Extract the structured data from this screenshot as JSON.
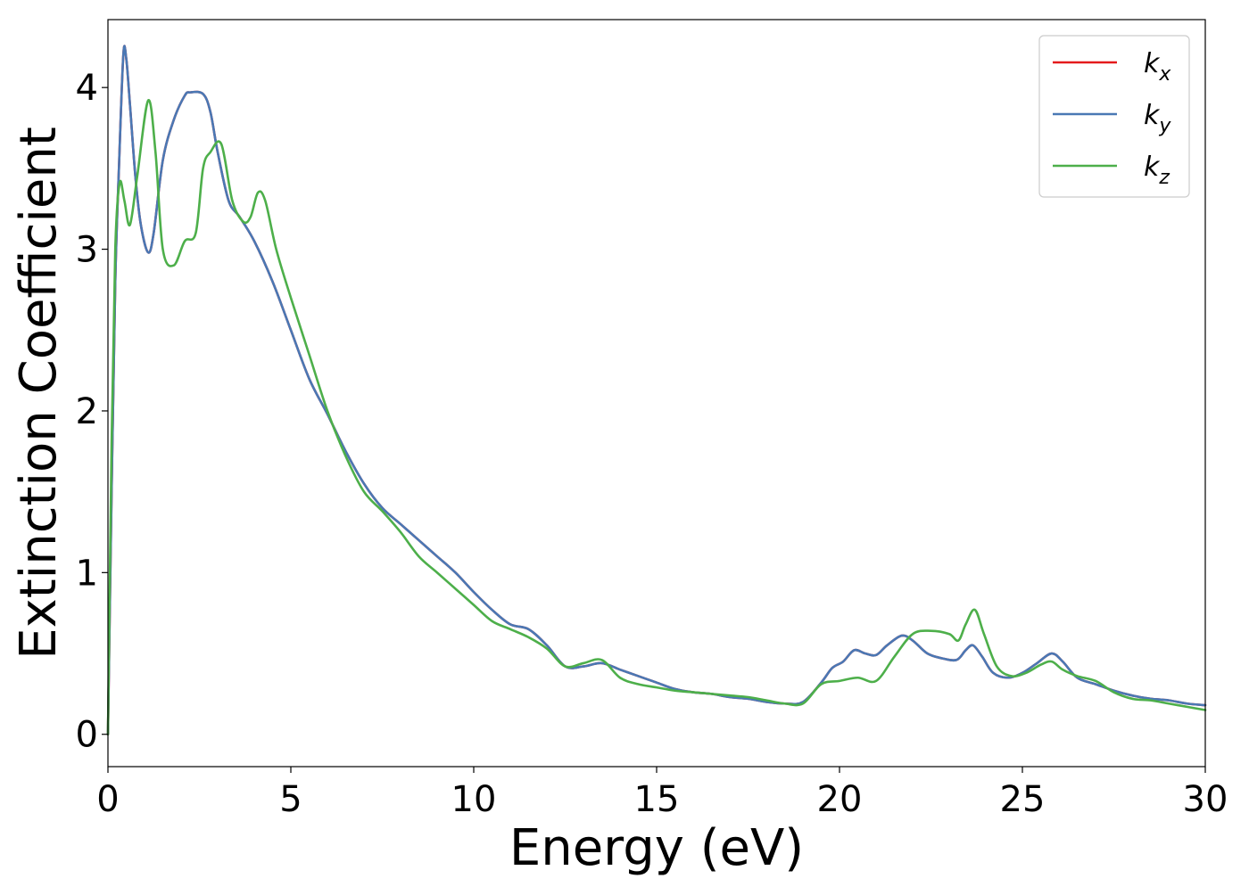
{
  "chart_data": {
    "type": "line",
    "title": "",
    "xlabel": "Energy (eV)",
    "ylabel": "Extinction Coefficient",
    "xlim": [
      0,
      30
    ],
    "ylim": [
      -0.2,
      4.42
    ],
    "xticks": [
      0,
      5,
      10,
      15,
      20,
      25,
      30
    ],
    "yticks": [
      0,
      1,
      2,
      3,
      4
    ],
    "grid": false,
    "legend_position": "top-right",
    "series": [
      {
        "name": "k_x",
        "label_base": "k",
        "label_sub": "x",
        "color": "#e41a1c",
        "x": [
          0.0,
          0.1,
          0.2,
          0.3,
          0.42,
          0.5,
          0.6,
          0.75,
          0.9,
          1.1,
          1.25,
          1.5,
          1.8,
          2.1,
          2.25,
          2.6,
          2.8,
          3.0,
          3.3,
          3.6,
          4.0,
          4.5,
          5.0,
          5.5,
          6.0,
          6.5,
          7.0,
          7.5,
          8.0,
          8.5,
          9.0,
          9.5,
          10.0,
          10.5,
          11.0,
          11.5,
          12.0,
          12.5,
          13.0,
          13.5,
          14.0,
          14.5,
          15.0,
          15.5,
          16.0,
          16.5,
          17.0,
          17.5,
          18.0,
          18.5,
          19.0,
          19.5,
          19.8,
          20.1,
          20.4,
          20.7,
          21.0,
          21.3,
          21.7,
          22.0,
          22.4,
          22.8,
          23.2,
          23.45,
          23.65,
          23.9,
          24.2,
          24.6,
          25.0,
          25.4,
          25.8,
          26.1,
          26.5,
          27.0,
          27.5,
          28.0,
          28.5,
          29.0,
          29.5,
          30.0
        ],
        "y": [
          0.0,
          1.5,
          2.8,
          3.5,
          4.2,
          4.18,
          3.9,
          3.45,
          3.15,
          2.98,
          3.1,
          3.55,
          3.8,
          3.95,
          3.97,
          3.96,
          3.85,
          3.6,
          3.3,
          3.2,
          3.05,
          2.8,
          2.5,
          2.2,
          1.98,
          1.75,
          1.55,
          1.4,
          1.3,
          1.2,
          1.1,
          1.0,
          0.88,
          0.77,
          0.68,
          0.65,
          0.55,
          0.42,
          0.42,
          0.44,
          0.4,
          0.36,
          0.32,
          0.28,
          0.26,
          0.25,
          0.23,
          0.22,
          0.2,
          0.19,
          0.2,
          0.32,
          0.41,
          0.45,
          0.52,
          0.5,
          0.49,
          0.55,
          0.61,
          0.58,
          0.5,
          0.47,
          0.46,
          0.52,
          0.55,
          0.48,
          0.38,
          0.35,
          0.38,
          0.44,
          0.5,
          0.45,
          0.35,
          0.31,
          0.27,
          0.24,
          0.22,
          0.21,
          0.19,
          0.18
        ]
      },
      {
        "name": "k_y",
        "label_base": "k",
        "label_sub": "y",
        "color": "#4a78b4",
        "x": [
          0.0,
          0.1,
          0.2,
          0.3,
          0.42,
          0.5,
          0.6,
          0.75,
          0.9,
          1.1,
          1.25,
          1.5,
          1.8,
          2.1,
          2.25,
          2.6,
          2.8,
          3.0,
          3.3,
          3.6,
          4.0,
          4.5,
          5.0,
          5.5,
          6.0,
          6.5,
          7.0,
          7.5,
          8.0,
          8.5,
          9.0,
          9.5,
          10.0,
          10.5,
          11.0,
          11.5,
          12.0,
          12.5,
          13.0,
          13.5,
          14.0,
          14.5,
          15.0,
          15.5,
          16.0,
          16.5,
          17.0,
          17.5,
          18.0,
          18.5,
          19.0,
          19.5,
          19.8,
          20.1,
          20.4,
          20.7,
          21.0,
          21.3,
          21.7,
          22.0,
          22.4,
          22.8,
          23.2,
          23.45,
          23.65,
          23.9,
          24.2,
          24.6,
          25.0,
          25.4,
          25.8,
          26.1,
          26.5,
          27.0,
          27.5,
          28.0,
          28.5,
          29.0,
          29.5,
          30.0
        ],
        "y": [
          0.0,
          1.5,
          2.8,
          3.5,
          4.2,
          4.18,
          3.9,
          3.45,
          3.15,
          2.98,
          3.1,
          3.55,
          3.8,
          3.95,
          3.97,
          3.96,
          3.85,
          3.6,
          3.3,
          3.2,
          3.05,
          2.8,
          2.5,
          2.2,
          1.98,
          1.75,
          1.55,
          1.4,
          1.3,
          1.2,
          1.1,
          1.0,
          0.88,
          0.77,
          0.68,
          0.65,
          0.55,
          0.42,
          0.42,
          0.44,
          0.4,
          0.36,
          0.32,
          0.28,
          0.26,
          0.25,
          0.23,
          0.22,
          0.2,
          0.19,
          0.2,
          0.32,
          0.41,
          0.45,
          0.52,
          0.5,
          0.49,
          0.55,
          0.61,
          0.58,
          0.5,
          0.47,
          0.46,
          0.52,
          0.55,
          0.48,
          0.38,
          0.35,
          0.38,
          0.44,
          0.5,
          0.45,
          0.35,
          0.31,
          0.27,
          0.24,
          0.22,
          0.21,
          0.19,
          0.18
        ]
      },
      {
        "name": "k_z",
        "label_base": "k",
        "label_sub": "z",
        "color": "#4daf4a",
        "x": [
          0.0,
          0.1,
          0.2,
          0.32,
          0.45,
          0.6,
          0.8,
          1.1,
          1.3,
          1.5,
          1.8,
          2.1,
          2.4,
          2.6,
          2.8,
          3.1,
          3.4,
          3.7,
          3.9,
          4.1,
          4.3,
          4.6,
          5.0,
          5.5,
          6.0,
          6.5,
          7.0,
          7.5,
          8.0,
          8.5,
          9.0,
          9.5,
          10.0,
          10.5,
          11.0,
          11.5,
          12.0,
          12.5,
          13.0,
          13.5,
          14.0,
          14.5,
          15.0,
          15.5,
          16.0,
          16.5,
          17.0,
          17.5,
          18.0,
          18.5,
          19.0,
          19.5,
          20.0,
          20.5,
          21.0,
          21.5,
          22.0,
          22.5,
          23.0,
          23.25,
          23.45,
          23.7,
          23.95,
          24.3,
          24.7,
          25.1,
          25.5,
          25.8,
          26.1,
          26.5,
          27.0,
          27.5,
          28.0,
          28.5,
          29.0,
          29.5,
          30.0
        ],
        "y": [
          0.0,
          1.8,
          3.0,
          3.41,
          3.3,
          3.15,
          3.45,
          3.92,
          3.6,
          3.0,
          2.9,
          3.05,
          3.1,
          3.5,
          3.6,
          3.65,
          3.3,
          3.17,
          3.2,
          3.35,
          3.3,
          3.0,
          2.7,
          2.35,
          2.0,
          1.72,
          1.5,
          1.38,
          1.25,
          1.1,
          1.0,
          0.9,
          0.8,
          0.7,
          0.65,
          0.6,
          0.53,
          0.42,
          0.44,
          0.46,
          0.35,
          0.31,
          0.29,
          0.27,
          0.26,
          0.25,
          0.24,
          0.23,
          0.21,
          0.19,
          0.19,
          0.31,
          0.33,
          0.35,
          0.33,
          0.48,
          0.62,
          0.64,
          0.62,
          0.58,
          0.68,
          0.77,
          0.62,
          0.42,
          0.36,
          0.38,
          0.43,
          0.45,
          0.4,
          0.36,
          0.33,
          0.26,
          0.22,
          0.21,
          0.19,
          0.17,
          0.15
        ]
      }
    ]
  }
}
